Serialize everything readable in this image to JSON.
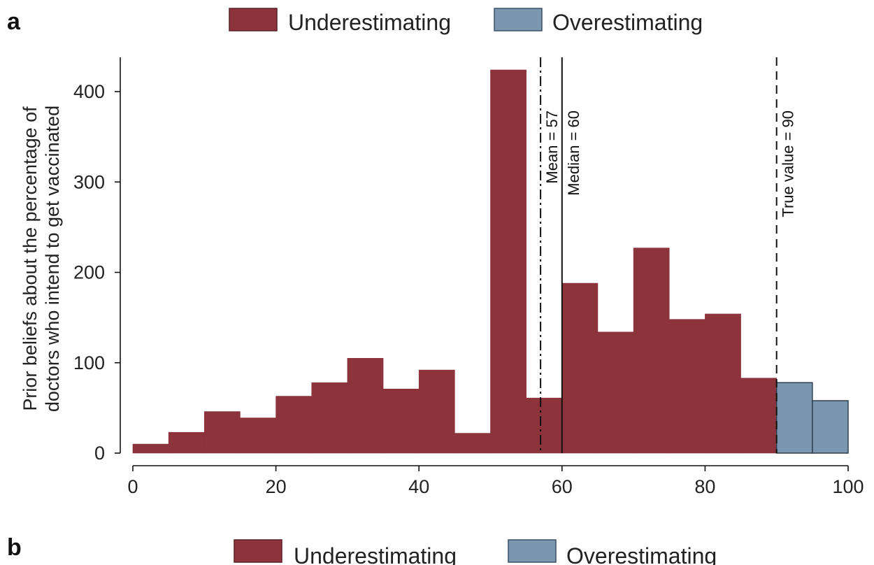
{
  "panels": [
    {
      "letter": "a",
      "legend": [
        {
          "label": "Underestimating",
          "color": "#8c333c"
        },
        {
          "label": "Overestimating",
          "color": "#7b97b0"
        }
      ]
    },
    {
      "letter": "b",
      "legend": [
        {
          "label": "Underestimating",
          "color": "#8c333c"
        },
        {
          "label": "Overestimating",
          "color": "#7b97b0"
        }
      ]
    }
  ],
  "chart_data": {
    "type": "bar",
    "subtype": "histogram",
    "ylabel_lines": [
      "Prior beliefs about the percentage of",
      "doctors who intend to get vaccinated"
    ],
    "xlabel": "",
    "xlim": [
      0,
      100
    ],
    "ylim": [
      0,
      430
    ],
    "xticks": [
      0,
      20,
      40,
      60,
      80,
      100
    ],
    "yticks": [
      0,
      100,
      200,
      300,
      400
    ],
    "grid": false,
    "legend_position": "top",
    "bin_width": 5,
    "series": [
      {
        "name": "Underestimating",
        "color": "#8c333c",
        "bins": [
          {
            "x0": 0,
            "x1": 5,
            "value": 10
          },
          {
            "x0": 5,
            "x1": 10,
            "value": 23
          },
          {
            "x0": 10,
            "x1": 15,
            "value": 46
          },
          {
            "x0": 15,
            "x1": 20,
            "value": 39
          },
          {
            "x0": 20,
            "x1": 25,
            "value": 63
          },
          {
            "x0": 25,
            "x1": 30,
            "value": 78
          },
          {
            "x0": 30,
            "x1": 35,
            "value": 105
          },
          {
            "x0": 35,
            "x1": 40,
            "value": 71
          },
          {
            "x0": 40,
            "x1": 45,
            "value": 92
          },
          {
            "x0": 45,
            "x1": 50,
            "value": 22
          },
          {
            "x0": 50,
            "x1": 55,
            "value": 424
          },
          {
            "x0": 55,
            "x1": 60,
            "value": 61
          },
          {
            "x0": 60,
            "x1": 65,
            "value": 188
          },
          {
            "x0": 65,
            "x1": 70,
            "value": 134
          },
          {
            "x0": 70,
            "x1": 75,
            "value": 227
          },
          {
            "x0": 75,
            "x1": 80,
            "value": 148
          },
          {
            "x0": 80,
            "x1": 85,
            "value": 154
          },
          {
            "x0": 85,
            "x1": 90,
            "value": 83
          }
        ]
      },
      {
        "name": "Overestimating",
        "color": "#7b97b0",
        "bins": [
          {
            "x0": 90,
            "x1": 95,
            "value": 78
          },
          {
            "x0": 95,
            "x1": 100,
            "value": 58
          }
        ]
      }
    ],
    "reference_lines": [
      {
        "label": "Mean = 57",
        "x": 57,
        "style": "dashdot"
      },
      {
        "label": "Median = 60",
        "x": 60,
        "style": "solid"
      },
      {
        "label": "True value = 90",
        "x": 90,
        "style": "dashed"
      }
    ]
  }
}
